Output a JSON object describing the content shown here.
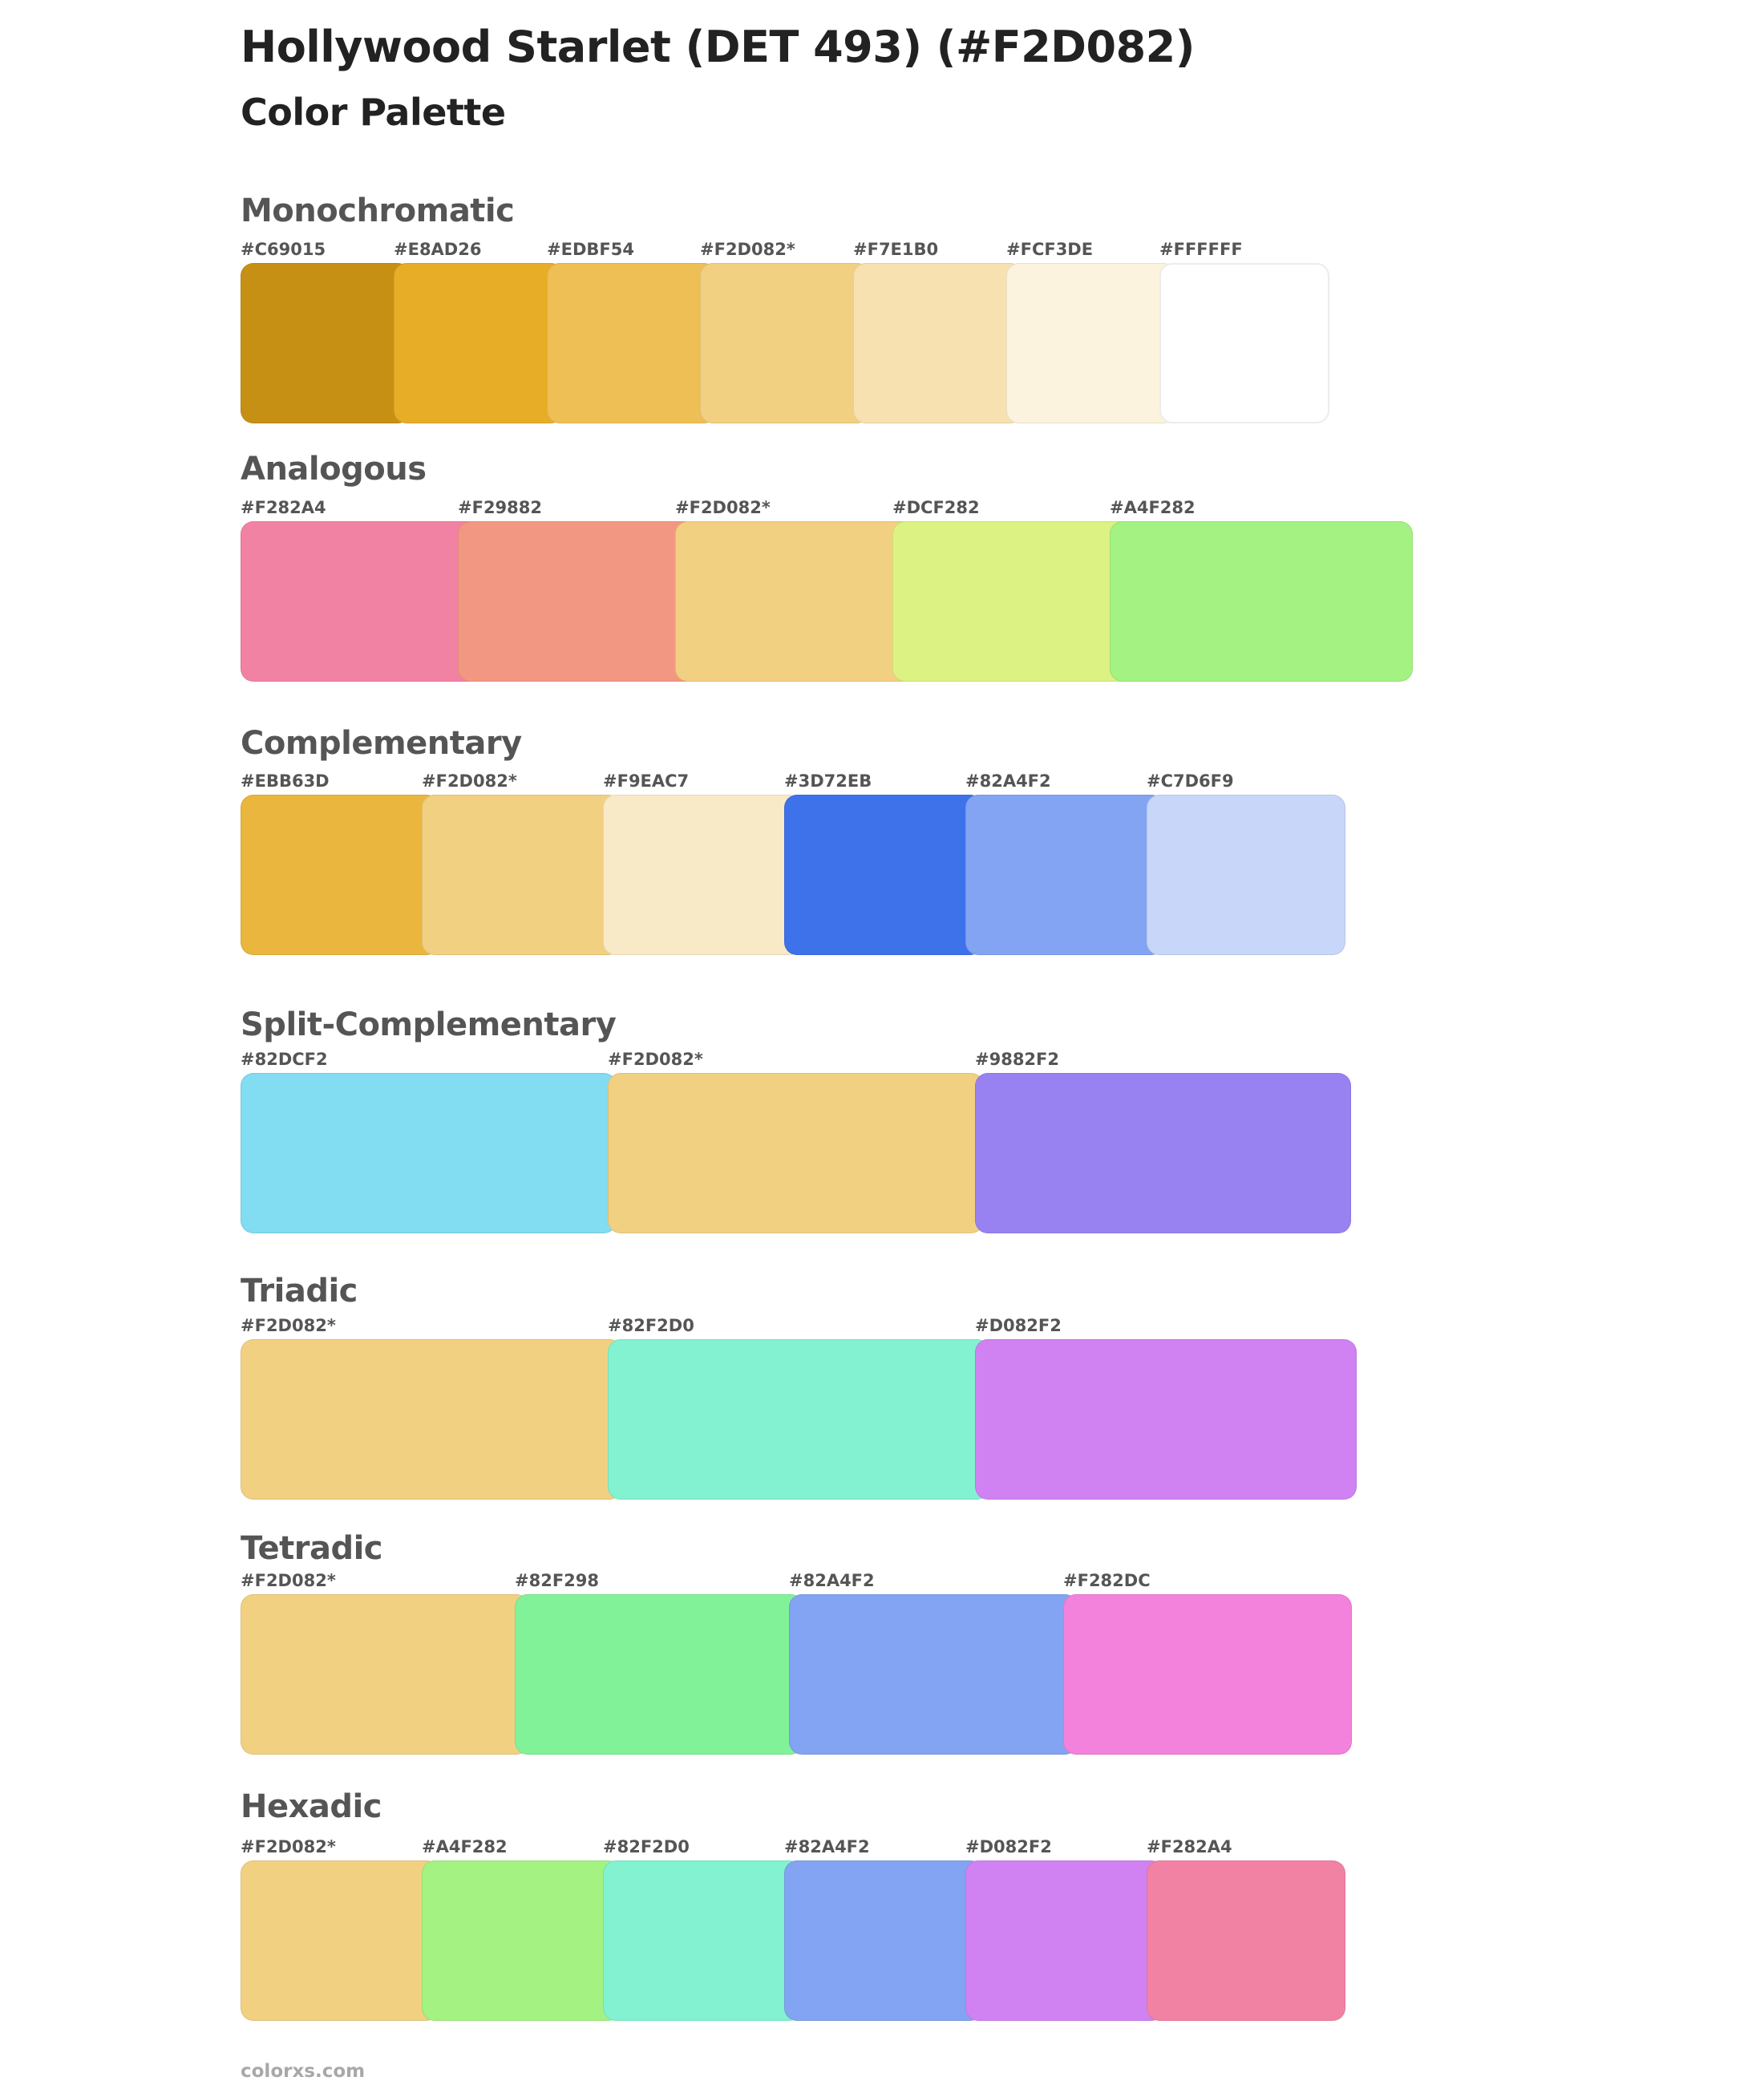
{
  "header": {
    "title": "Hollywood Starlet (DET 493) (#F2D082)",
    "subtitle": "Color Palette"
  },
  "sections": [
    {
      "name": "Monochromatic",
      "swatches": [
        {
          "label": "#C69015",
          "color": "#C69015"
        },
        {
          "label": "#E8AD26",
          "color": "#E8AD26"
        },
        {
          "label": "#EDBF54",
          "color": "#EDBF54"
        },
        {
          "label": "#F2D082*",
          "color": "#F2D082"
        },
        {
          "label": "#F7E1B0",
          "color": "#F7E1B0"
        },
        {
          "label": "#FCF3DE",
          "color": "#FCF3DE"
        },
        {
          "label": "#FFFFFF",
          "color": "#FFFFFF"
        }
      ]
    },
    {
      "name": "Analogous",
      "swatches": [
        {
          "label": "#F282A4",
          "color": "#F282A4"
        },
        {
          "label": "#F29882",
          "color": "#F29882"
        },
        {
          "label": "#F2D082*",
          "color": "#F2D082"
        },
        {
          "label": "#DCF282",
          "color": "#DCF282"
        },
        {
          "label": "#A4F282",
          "color": "#A4F282"
        }
      ]
    },
    {
      "name": "Complementary",
      "swatches": [
        {
          "label": "#EBB63D",
          "color": "#EBB63D"
        },
        {
          "label": "#F2D082*",
          "color": "#F2D082"
        },
        {
          "label": "#F9EAC7",
          "color": "#F9EAC7"
        },
        {
          "label": "#3D72EB",
          "color": "#3D72EB"
        },
        {
          "label": "#82A4F2",
          "color": "#82A4F2"
        },
        {
          "label": "#C7D6F9",
          "color": "#C7D6F9"
        }
      ]
    },
    {
      "name": "Split-Complementary",
      "swatches": [
        {
          "label": "#82DCF2",
          "color": "#82DCF2"
        },
        {
          "label": "#F2D082*",
          "color": "#F2D082"
        },
        {
          "label": "#9882F2",
          "color": "#9882F2"
        }
      ]
    },
    {
      "name": "Triadic",
      "swatches": [
        {
          "label": "#F2D082*",
          "color": "#F2D082"
        },
        {
          "label": "#82F2D0",
          "color": "#82F2D0"
        },
        {
          "label": "#D082F2",
          "color": "#D082F2"
        }
      ]
    },
    {
      "name": "Tetradic",
      "swatches": [
        {
          "label": "#F2D082*",
          "color": "#F2D082"
        },
        {
          "label": "#82F298",
          "color": "#82F298"
        },
        {
          "label": "#82A4F2",
          "color": "#82A4F2"
        },
        {
          "label": "#F282DC",
          "color": "#F282DC"
        }
      ]
    },
    {
      "name": "Hexadic",
      "swatches": [
        {
          "label": "#F2D082*",
          "color": "#F2D082"
        },
        {
          "label": "#A4F282",
          "color": "#A4F282"
        },
        {
          "label": "#82F2D0",
          "color": "#82F2D0"
        },
        {
          "label": "#82A4F2",
          "color": "#82A4F2"
        },
        {
          "label": "#D082F2",
          "color": "#D082F2"
        },
        {
          "label": "#F282A4",
          "color": "#F282A4"
        }
      ]
    }
  ],
  "footer": {
    "site": "colorxs.com"
  }
}
